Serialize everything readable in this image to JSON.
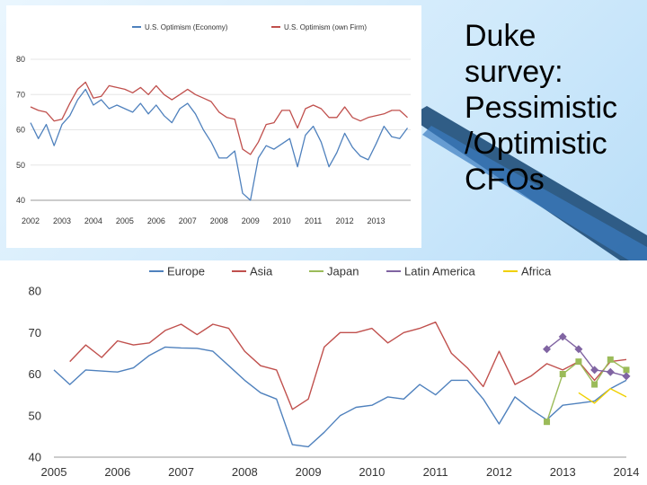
{
  "slide": {
    "title_lines": [
      "Duke",
      "survey:",
      "Pessimistic",
      "/Optimistic",
      "CFOs"
    ]
  },
  "chart_data": [
    {
      "type": "line",
      "title": "",
      "xlabel": "",
      "ylabel": "",
      "ylim": [
        40,
        80
      ],
      "yticks": [
        40,
        50,
        60,
        70,
        80
      ],
      "x_tick_labels": [
        "2002",
        "2003",
        "2004",
        "2005",
        "2006",
        "2007",
        "2008",
        "2009",
        "2010",
        "2011",
        "2012",
        "2013"
      ],
      "x_range": [
        2002,
        2014.1
      ],
      "legend_position": "top",
      "series": [
        {
          "name": "U.S. Optimism (Economy)",
          "color": "#4f81bd",
          "points": [
            [
              2002,
              62
            ],
            [
              2002.25,
              57.5
            ],
            [
              2002.5,
              61.5
            ],
            [
              2002.75,
              55.5
            ],
            [
              2003,
              61.5
            ],
            [
              2003.25,
              64
            ],
            [
              2003.5,
              68.5
            ],
            [
              2003.75,
              71.5
            ],
            [
              2004,
              67
            ],
            [
              2004.25,
              68.5
            ],
            [
              2004.5,
              66
            ],
            [
              2004.75,
              67
            ],
            [
              2005,
              66
            ],
            [
              2005.25,
              65
            ],
            [
              2005.5,
              67.5
            ],
            [
              2005.75,
              64.5
            ],
            [
              2006,
              67
            ],
            [
              2006.25,
              64
            ],
            [
              2006.5,
              62
            ],
            [
              2006.75,
              66
            ],
            [
              2007,
              67.5
            ],
            [
              2007.25,
              64.5
            ],
            [
              2007.5,
              60
            ],
            [
              2007.75,
              56.5
            ],
            [
              2008,
              52
            ],
            [
              2008.25,
              52
            ],
            [
              2008.5,
              54
            ],
            [
              2008.75,
              42
            ],
            [
              2009,
              40
            ],
            [
              2009.25,
              52
            ],
            [
              2009.5,
              55.5
            ],
            [
              2009.75,
              54.5
            ],
            [
              2010,
              56
            ],
            [
              2010.25,
              57.5
            ],
            [
              2010.5,
              49.5
            ],
            [
              2010.75,
              58.5
            ],
            [
              2011,
              61
            ],
            [
              2011.25,
              56.5
            ],
            [
              2011.5,
              49.5
            ],
            [
              2011.75,
              53.5
            ],
            [
              2012,
              59
            ],
            [
              2012.25,
              55
            ],
            [
              2012.5,
              52.5
            ],
            [
              2012.75,
              51.5
            ],
            [
              2013,
              56
            ],
            [
              2013.25,
              61
            ],
            [
              2013.5,
              58
            ],
            [
              2013.75,
              57.5
            ],
            [
              2014,
              60.5
            ]
          ]
        },
        {
          "name": "U.S. Optimism (own Firm)",
          "color": "#c0504d",
          "points": [
            [
              2002,
              66.5
            ],
            [
              2002.25,
              65.5
            ],
            [
              2002.5,
              65
            ],
            [
              2002.75,
              62.5
            ],
            [
              2003,
              63
            ],
            [
              2003.25,
              67.5
            ],
            [
              2003.5,
              71.5
            ],
            [
              2003.75,
              73.5
            ],
            [
              2004,
              69
            ],
            [
              2004.25,
              69.5
            ],
            [
              2004.5,
              72.5
            ],
            [
              2004.75,
              72
            ],
            [
              2005,
              71.5
            ],
            [
              2005.25,
              70.5
            ],
            [
              2005.5,
              72
            ],
            [
              2005.75,
              70
            ],
            [
              2006,
              72.5
            ],
            [
              2006.25,
              70
            ],
            [
              2006.5,
              68.5
            ],
            [
              2006.75,
              70
            ],
            [
              2007,
              71.5
            ],
            [
              2007.25,
              70
            ],
            [
              2007.5,
              69
            ],
            [
              2007.75,
              68
            ],
            [
              2008,
              65
            ],
            [
              2008.25,
              63.5
            ],
            [
              2008.5,
              63
            ],
            [
              2008.75,
              54.5
            ],
            [
              2009,
              53
            ],
            [
              2009.25,
              56.5
            ],
            [
              2009.5,
              61.5
            ],
            [
              2009.75,
              62
            ],
            [
              2010,
              65.5
            ],
            [
              2010.25,
              65.5
            ],
            [
              2010.5,
              60.5
            ],
            [
              2010.75,
              66
            ],
            [
              2011,
              67
            ],
            [
              2011.25,
              66
            ],
            [
              2011.5,
              63.5
            ],
            [
              2011.75,
              63.5
            ],
            [
              2012,
              66.5
            ],
            [
              2012.25,
              63.5
            ],
            [
              2012.5,
              62.5
            ],
            [
              2012.75,
              63.5
            ],
            [
              2013,
              64
            ],
            [
              2013.25,
              64.5
            ],
            [
              2013.5,
              65.5
            ],
            [
              2013.75,
              65.5
            ],
            [
              2014,
              63.5
            ]
          ]
        }
      ]
    },
    {
      "type": "line",
      "title": "",
      "xlabel": "",
      "ylabel": "",
      "ylim": [
        40,
        80
      ],
      "yticks": [
        40,
        50,
        60,
        70,
        80
      ],
      "x_tick_labels": [
        "2005",
        "2006",
        "2007",
        "2008",
        "2009",
        "2010",
        "2011",
        "2012",
        "2013",
        "2014"
      ],
      "x_range": [
        2005,
        2014
      ],
      "legend_position": "top",
      "series": [
        {
          "name": "Europe",
          "color": "#4f81bd",
          "points": [
            [
              2005,
              61
            ],
            [
              2005.25,
              57.5
            ],
            [
              2005.5,
              61
            ],
            [
              2006,
              60.5
            ],
            [
              2006.25,
              61.5
            ],
            [
              2006.5,
              64.5
            ],
            [
              2006.75,
              66.5
            ],
            [
              2007,
              66.3
            ],
            [
              2007.25,
              66.2
            ],
            [
              2007.5,
              65.5
            ],
            [
              2007.75,
              62
            ],
            [
              2008,
              58.5
            ],
            [
              2008.25,
              55.5
            ],
            [
              2008.5,
              54
            ],
            [
              2008.75,
              43
            ],
            [
              2009,
              42.5
            ],
            [
              2009.25,
              46
            ],
            [
              2009.5,
              50
            ],
            [
              2009.75,
              52
            ],
            [
              2010,
              52.5
            ],
            [
              2010.25,
              54.5
            ],
            [
              2010.5,
              54
            ],
            [
              2010.75,
              57.5
            ],
            [
              2011,
              55
            ],
            [
              2011.25,
              58.5
            ],
            [
              2011.5,
              58.5
            ],
            [
              2011.75,
              54
            ],
            [
              2012,
              48
            ],
            [
              2012.25,
              54.5
            ],
            [
              2012.5,
              51.5
            ],
            [
              2012.75,
              49
            ],
            [
              2013,
              52.5
            ],
            [
              2013.25,
              53
            ],
            [
              2013.5,
              53.5
            ],
            [
              2013.75,
              56.5
            ],
            [
              2014,
              58.5
            ]
          ]
        },
        {
          "name": "Asia",
          "color": "#c0504d",
          "points": [
            [
              2005.25,
              63
            ],
            [
              2005.5,
              67
            ],
            [
              2005.75,
              64
            ],
            [
              2006,
              68
            ],
            [
              2006.25,
              67
            ],
            [
              2006.5,
              67.5
            ],
            [
              2006.75,
              70.5
            ],
            [
              2007,
              72
            ],
            [
              2007.25,
              69.5
            ],
            [
              2007.5,
              72
            ],
            [
              2007.75,
              71
            ],
            [
              2008,
              65.5
            ],
            [
              2008.25,
              62
            ],
            [
              2008.5,
              61
            ],
            [
              2008.75,
              51.5
            ],
            [
              2009,
              54
            ],
            [
              2009.25,
              66.5
            ],
            [
              2009.5,
              70
            ],
            [
              2009.75,
              70
            ],
            [
              2010,
              71
            ],
            [
              2010.25,
              67.5
            ],
            [
              2010.5,
              70
            ],
            [
              2010.75,
              71
            ],
            [
              2011,
              72.5
            ],
            [
              2011.25,
              65
            ],
            [
              2011.5,
              61.5
            ],
            [
              2011.75,
              57
            ],
            [
              2012,
              65.5
            ],
            [
              2012.25,
              57.5
            ],
            [
              2012.5,
              59.5
            ],
            [
              2012.75,
              62.5
            ],
            [
              2013,
              61
            ],
            [
              2013.25,
              63
            ],
            [
              2013.5,
              58.5
            ],
            [
              2013.75,
              63
            ],
            [
              2014,
              63.5
            ]
          ]
        },
        {
          "name": "Japan",
          "color": "#9bbb59",
          "marker": "square",
          "points": [
            [
              2012.75,
              48.5
            ],
            [
              2013,
              60
            ],
            [
              2013.25,
              63
            ],
            [
              2013.5,
              57.5
            ],
            [
              2013.75,
              63.5
            ],
            [
              2014,
              61
            ]
          ]
        },
        {
          "name": "Latin America",
          "color": "#8064a2",
          "marker": "diamond",
          "points": [
            [
              2012.75,
              66
            ],
            [
              2013,
              69
            ],
            [
              2013.25,
              66
            ],
            [
              2013.5,
              61
            ],
            [
              2013.75,
              60.5
            ],
            [
              2014,
              59.5
            ]
          ]
        },
        {
          "name": "Africa",
          "color": "#f0d000",
          "points": [
            [
              2013.25,
              55.5
            ],
            [
              2013.5,
              53
            ],
            [
              2013.75,
              56.5
            ],
            [
              2014,
              54.5
            ]
          ]
        }
      ]
    }
  ]
}
